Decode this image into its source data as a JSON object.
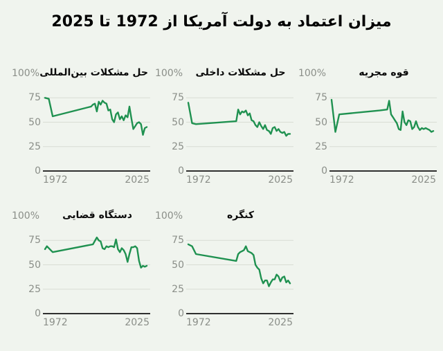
{
  "page": {
    "title": "میزان اعتماد به دولت آمریکا از 1972 تا 2025"
  },
  "style": {
    "background": "#f0f4ee",
    "line_color": "#1f9150",
    "grid_color": "#d8dcd4",
    "baseline_color": "#2f2f2f",
    "tick_color": "#8a8e88",
    "title_color": "#0a0a0a"
  },
  "axis": {
    "y_top_label": "100%",
    "y_ticks": [
      {
        "label": "75",
        "value": 75
      },
      {
        "label": "50",
        "value": 50
      },
      {
        "label": "25",
        "value": 25
      },
      {
        "label": "0",
        "value": 0
      }
    ],
    "x_ticks": [
      {
        "label": "1972",
        "year": 1972
      },
      {
        "label": "2025",
        "year": 2025
      }
    ],
    "x_range": [
      1972,
      2025
    ],
    "y_range": [
      0,
      100
    ],
    "unit": "%",
    "grid": true
  },
  "chart_data": [
    {
      "type": "line",
      "title": "حل مشکلات بین‌المللی",
      "xlim": [
        1972,
        2025
      ],
      "ylim": [
        0,
        100
      ],
      "x": [
        1972,
        1974,
        1976,
        1996,
        1997,
        1998,
        1999,
        2000,
        2001,
        2002,
        2003,
        2004,
        2005,
        2006,
        2007,
        2008,
        2009,
        2010,
        2011,
        2012,
        2013,
        2014,
        2015,
        2016,
        2017,
        2018,
        2019,
        2020,
        2021,
        2022,
        2023,
        2024,
        2025
      ],
      "values": [
        75,
        74,
        56,
        66,
        68,
        69,
        61,
        71,
        68,
        72,
        70,
        69,
        62,
        63,
        53,
        50,
        58,
        60,
        53,
        56,
        52,
        57,
        55,
        66,
        54,
        43,
        46,
        49,
        50,
        48,
        37,
        44,
        45
      ]
    },
    {
      "type": "line",
      "title": "حل مشکلات داخلی",
      "xlim": [
        1972,
        2025
      ],
      "ylim": [
        0,
        100
      ],
      "x": [
        1972,
        1974,
        1976,
        1997,
        1998,
        1999,
        2000,
        2001,
        2002,
        2003,
        2004,
        2005,
        2006,
        2007,
        2008,
        2009,
        2010,
        2011,
        2012,
        2013,
        2014,
        2015,
        2016,
        2017,
        2018,
        2019,
        2020,
        2021,
        2022,
        2023,
        2024,
        2025
      ],
      "values": [
        70,
        49,
        48,
        51,
        63,
        58,
        61,
        60,
        62,
        57,
        59,
        52,
        51,
        47,
        45,
        50,
        46,
        43,
        47,
        42,
        41,
        38,
        44,
        45,
        41,
        43,
        40,
        39,
        40,
        36,
        38,
        38
      ]
    },
    {
      "type": "line",
      "title": "قوه مجریه",
      "xlim": [
        1972,
        2025
      ],
      "ylim": [
        0,
        100
      ],
      "x": [
        1972,
        1974,
        1976,
        1997,
        2001,
        2002,
        2003,
        2004,
        2005,
        2006,
        2007,
        2008,
        2009,
        2010,
        2011,
        2012,
        2013,
        2014,
        2015,
        2016,
        2017,
        2018,
        2019,
        2020,
        2021,
        2022,
        2023,
        2024,
        2025
      ],
      "values": [
        73,
        40,
        58,
        62,
        63,
        72,
        58,
        55,
        52,
        49,
        43,
        42,
        61,
        50,
        47,
        52,
        51,
        43,
        45,
        51,
        45,
        42,
        44,
        43,
        44,
        43,
        42,
        40,
        41
      ]
    },
    {
      "type": "line",
      "title": "دستگاه قضایی",
      "xlim": [
        1972,
        2025
      ],
      "ylim": [
        0,
        100
      ],
      "x": [
        1972,
        1973,
        1976,
        1997,
        1999,
        2000,
        2001,
        2002,
        2003,
        2004,
        2005,
        2006,
        2007,
        2008,
        2009,
        2010,
        2011,
        2012,
        2013,
        2014,
        2015,
        2016,
        2017,
        2018,
        2019,
        2020,
        2021,
        2022,
        2023,
        2024,
        2025
      ],
      "values": [
        66,
        69,
        63,
        71,
        78,
        75,
        74,
        67,
        66,
        69,
        68,
        69,
        69,
        68,
        76,
        66,
        63,
        67,
        65,
        61,
        53,
        61,
        68,
        68,
        69,
        67,
        54,
        47,
        49,
        48,
        49
      ]
    },
    {
      "type": "line",
      "title": "کنگره",
      "xlim": [
        1972,
        2025
      ],
      "ylim": [
        0,
        100
      ],
      "x": [
        1972,
        1974,
        1976,
        1997,
        1998,
        1999,
        2000,
        2001,
        2002,
        2003,
        2004,
        2005,
        2006,
        2007,
        2008,
        2009,
        2010,
        2011,
        2012,
        2013,
        2014,
        2015,
        2016,
        2017,
        2018,
        2019,
        2020,
        2021,
        2022,
        2023,
        2024,
        2025
      ],
      "values": [
        71,
        69,
        61,
        54,
        61,
        63,
        64,
        65,
        69,
        64,
        63,
        62,
        60,
        50,
        47,
        45,
        36,
        31,
        34,
        34,
        28,
        32,
        35,
        35,
        40,
        38,
        33,
        37,
        38,
        32,
        34,
        31
      ]
    }
  ]
}
